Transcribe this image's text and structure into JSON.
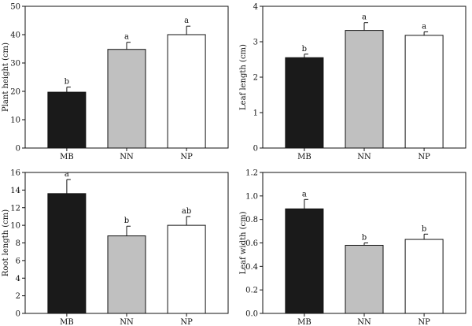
{
  "chart_data": [
    {
      "type": "bar",
      "categories": [
        "MB",
        "NN",
        "NP"
      ],
      "values": [
        19.7,
        34.8,
        40.0
      ],
      "errors": [
        1.8,
        2.5,
        3.0
      ],
      "significance": [
        "b",
        "a",
        "a"
      ],
      "colors": [
        "#1a1a1a",
        "#c0c0c0",
        "#ffffff"
      ],
      "ylabel": "Plant height (cm)",
      "ylim": [
        0,
        50
      ],
      "yticks": [
        "0",
        "10",
        "20",
        "30",
        "40",
        "50"
      ]
    },
    {
      "type": "bar",
      "categories": [
        "MB",
        "NN",
        "NP"
      ],
      "values": [
        2.55,
        3.32,
        3.18
      ],
      "errors": [
        0.1,
        0.22,
        0.1
      ],
      "significance": [
        "b",
        "a",
        "a"
      ],
      "colors": [
        "#1a1a1a",
        "#c0c0c0",
        "#ffffff"
      ],
      "ylabel": "Leaf length (cm)",
      "ylim": [
        0,
        4
      ],
      "yticks": [
        "0",
        "1",
        "2",
        "3",
        "4"
      ]
    },
    {
      "type": "bar",
      "categories": [
        "MB",
        "NN",
        "NP"
      ],
      "values": [
        13.6,
        8.8,
        10.0
      ],
      "errors": [
        1.6,
        1.1,
        1.0
      ],
      "significance": [
        "a",
        "b",
        "ab"
      ],
      "colors": [
        "#1a1a1a",
        "#c0c0c0",
        "#ffffff"
      ],
      "ylabel": "Root length (cm)",
      "ylim": [
        0,
        16
      ],
      "yticks": [
        "0",
        "2",
        "4",
        "6",
        "8",
        "10",
        "12",
        "14",
        "16"
      ]
    },
    {
      "type": "bar",
      "categories": [
        "MB",
        "NN",
        "NP"
      ],
      "values": [
        0.89,
        0.58,
        0.63
      ],
      "errors": [
        0.08,
        0.02,
        0.045
      ],
      "significance": [
        "a",
        "b",
        "b"
      ],
      "colors": [
        "#1a1a1a",
        "#c0c0c0",
        "#ffffff"
      ],
      "ylabel": "Leaf width (cm)",
      "ylim": [
        0,
        1.2
      ],
      "yticks": [
        "0.0",
        "0.2",
        "0.4",
        "0.6",
        "0.8",
        "1.0",
        "1.2"
      ]
    }
  ]
}
